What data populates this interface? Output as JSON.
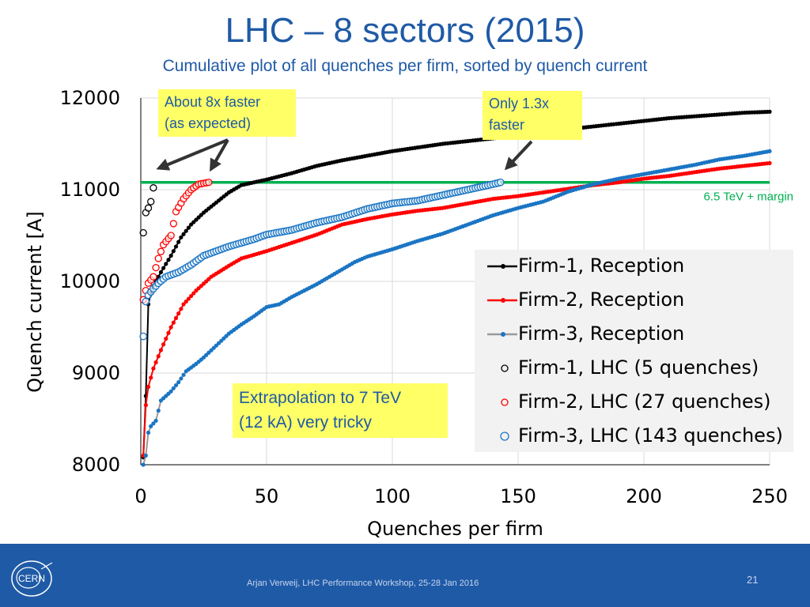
{
  "slide": {
    "title": "LHC – 8 sectors (2015)",
    "subtitle": "Cumulative plot of all quenches per firm, sorted by quench current",
    "footer_text": "Arjan Verweij, LHC Performance Workshop, 25-28 Jan 2016",
    "page_number": "21",
    "logo_text": "CERN"
  },
  "annotations": {
    "faster_8x": "About 8x faster\n(as expected)",
    "faster_1_3x": "Only 1.3x\nfaster",
    "extrapolation": "Extrapolation to 7 TeV\n(12 kA) very tricky",
    "threshold_label": "6.5 TeV + margin"
  },
  "colors": {
    "firm1": "#000000",
    "firm2": "#ff0000",
    "firm3": "#1a75c4",
    "firm3_line": "#999999",
    "threshold": "#00b050",
    "title": "#1f5aa6",
    "callout_bg": "#ffff66"
  },
  "chart_data": {
    "type": "line",
    "title": "",
    "xlabel": "Quenches per firm",
    "ylabel": "Quench current [A]",
    "xlim": [
      0,
      250
    ],
    "ylim": [
      8000,
      12000
    ],
    "xticks": [
      0,
      50,
      100,
      150,
      200,
      250
    ],
    "yticks": [
      8000,
      9000,
      10000,
      11000,
      12000
    ],
    "threshold": {
      "y": 11080,
      "label": "6.5 TeV + margin"
    },
    "series": [
      {
        "name": "Firm-1, Reception",
        "style": "line",
        "count": 250,
        "knots": [
          [
            1,
            8080
          ],
          [
            2,
            8750
          ],
          [
            3,
            9750
          ],
          [
            4,
            9870
          ],
          [
            5,
            9950
          ],
          [
            8,
            10100
          ],
          [
            12,
            10280
          ],
          [
            16,
            10480
          ],
          [
            20,
            10620
          ],
          [
            25,
            10750
          ],
          [
            30,
            10860
          ],
          [
            35,
            10970
          ],
          [
            40,
            11050
          ],
          [
            50,
            11110
          ],
          [
            60,
            11180
          ],
          [
            70,
            11260
          ],
          [
            80,
            11320
          ],
          [
            90,
            11370
          ],
          [
            100,
            11420
          ],
          [
            110,
            11460
          ],
          [
            120,
            11500
          ],
          [
            130,
            11530
          ],
          [
            140,
            11560
          ],
          [
            150,
            11590
          ],
          [
            160,
            11630
          ],
          [
            170,
            11660
          ],
          [
            180,
            11690
          ],
          [
            190,
            11720
          ],
          [
            200,
            11750
          ],
          [
            210,
            11780
          ],
          [
            220,
            11800
          ],
          [
            230,
            11820
          ],
          [
            240,
            11840
          ],
          [
            250,
            11850
          ]
        ]
      },
      {
        "name": "Firm-2, Reception",
        "style": "line",
        "count": 250,
        "knots": [
          [
            1,
            8100
          ],
          [
            2,
            8650
          ],
          [
            3,
            8850
          ],
          [
            5,
            9050
          ],
          [
            8,
            9250
          ],
          [
            12,
            9500
          ],
          [
            17,
            9750
          ],
          [
            22,
            9900
          ],
          [
            28,
            10050
          ],
          [
            35,
            10170
          ],
          [
            40,
            10250
          ],
          [
            50,
            10330
          ],
          [
            60,
            10420
          ],
          [
            70,
            10510
          ],
          [
            80,
            10620
          ],
          [
            90,
            10680
          ],
          [
            100,
            10730
          ],
          [
            110,
            10770
          ],
          [
            120,
            10800
          ],
          [
            130,
            10850
          ],
          [
            140,
            10900
          ],
          [
            150,
            10930
          ],
          [
            160,
            10970
          ],
          [
            170,
            11010
          ],
          [
            180,
            11050
          ],
          [
            190,
            11080
          ],
          [
            200,
            11120
          ],
          [
            210,
            11150
          ],
          [
            220,
            11190
          ],
          [
            230,
            11230
          ],
          [
            240,
            11260
          ],
          [
            250,
            11290
          ]
        ]
      },
      {
        "name": "Firm-3, Reception",
        "style": "line",
        "count": 250,
        "knots": [
          [
            1,
            8000
          ],
          [
            2,
            8100
          ],
          [
            3,
            8350
          ],
          [
            4,
            8420
          ],
          [
            6,
            8480
          ],
          [
            8,
            8700
          ],
          [
            12,
            8800
          ],
          [
            15,
            8900
          ],
          [
            18,
            9020
          ],
          [
            22,
            9100
          ],
          [
            25,
            9170
          ],
          [
            30,
            9300
          ],
          [
            35,
            9430
          ],
          [
            40,
            9530
          ],
          [
            45,
            9620
          ],
          [
            50,
            9720
          ],
          [
            55,
            9750
          ],
          [
            60,
            9830
          ],
          [
            65,
            9900
          ],
          [
            70,
            9970
          ],
          [
            75,
            10050
          ],
          [
            80,
            10130
          ],
          [
            85,
            10210
          ],
          [
            90,
            10270
          ],
          [
            100,
            10350
          ],
          [
            110,
            10440
          ],
          [
            120,
            10520
          ],
          [
            130,
            10620
          ],
          [
            140,
            10720
          ],
          [
            150,
            10800
          ],
          [
            160,
            10870
          ],
          [
            170,
            10980
          ],
          [
            180,
            11060
          ],
          [
            190,
            11120
          ],
          [
            200,
            11170
          ],
          [
            210,
            11220
          ],
          [
            220,
            11270
          ],
          [
            230,
            11330
          ],
          [
            240,
            11370
          ],
          [
            250,
            11420
          ]
        ]
      },
      {
        "name": "Firm-1, LHC (5 quenches)",
        "style": "open-circles",
        "count": 5,
        "knots": [
          [
            1,
            10530
          ],
          [
            2,
            10750
          ],
          [
            3,
            10800
          ],
          [
            4,
            10870
          ],
          [
            5,
            11020
          ]
        ]
      },
      {
        "name": "Firm-2, LHC (27 quenches)",
        "style": "open-circles",
        "count": 27,
        "knots": [
          [
            1,
            9800
          ],
          [
            2,
            9900
          ],
          [
            3,
            9980
          ],
          [
            5,
            10050
          ],
          [
            7,
            10250
          ],
          [
            9,
            10400
          ],
          [
            12,
            10500
          ],
          [
            14,
            10760
          ],
          [
            17,
            10900
          ],
          [
            20,
            11000
          ],
          [
            23,
            11060
          ],
          [
            27,
            11080
          ]
        ]
      },
      {
        "name": "Firm-3, LHC (143 quenches)",
        "style": "open-circles",
        "count": 143,
        "knots": [
          [
            1,
            9400
          ],
          [
            2,
            9780
          ],
          [
            3,
            9850
          ],
          [
            5,
            9920
          ],
          [
            7,
            9980
          ],
          [
            10,
            10050
          ],
          [
            15,
            10100
          ],
          [
            20,
            10180
          ],
          [
            25,
            10280
          ],
          [
            30,
            10330
          ],
          [
            35,
            10380
          ],
          [
            40,
            10420
          ],
          [
            45,
            10460
          ],
          [
            50,
            10510
          ],
          [
            60,
            10560
          ],
          [
            70,
            10640
          ],
          [
            80,
            10700
          ],
          [
            90,
            10790
          ],
          [
            100,
            10850
          ],
          [
            110,
            10880
          ],
          [
            120,
            10940
          ],
          [
            130,
            11000
          ],
          [
            140,
            11060
          ],
          [
            143,
            11080
          ]
        ]
      }
    ]
  }
}
